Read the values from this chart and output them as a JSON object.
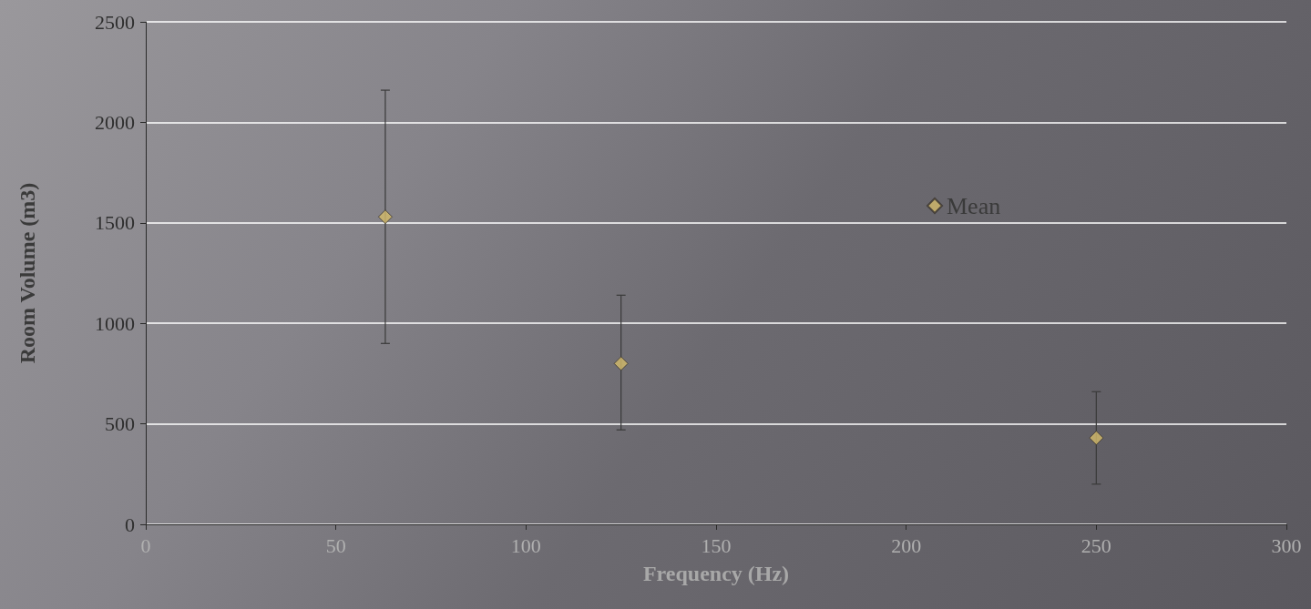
{
  "chart_data": {
    "type": "scatter",
    "xlabel": "Frequency (Hz)",
    "ylabel": "Room Volume (m3)",
    "x": [
      63,
      125,
      250
    ],
    "series": [
      {
        "name": "Mean",
        "color": "#d4bb6a",
        "values": [
          1530,
          800,
          430
        ],
        "errors": [
          [
            900,
            2160
          ],
          [
            470,
            1140
          ],
          [
            200,
            660
          ]
        ]
      }
    ],
    "xlim": [
      0,
      300
    ],
    "xticks": [
      0,
      50,
      100,
      150,
      200,
      250,
      300
    ],
    "ylim": [
      0,
      2500
    ],
    "yticks": [
      0,
      500,
      1000,
      1500,
      2000,
      2500
    ],
    "grid": "y",
    "legend": "right",
    "marker": "diamond"
  }
}
